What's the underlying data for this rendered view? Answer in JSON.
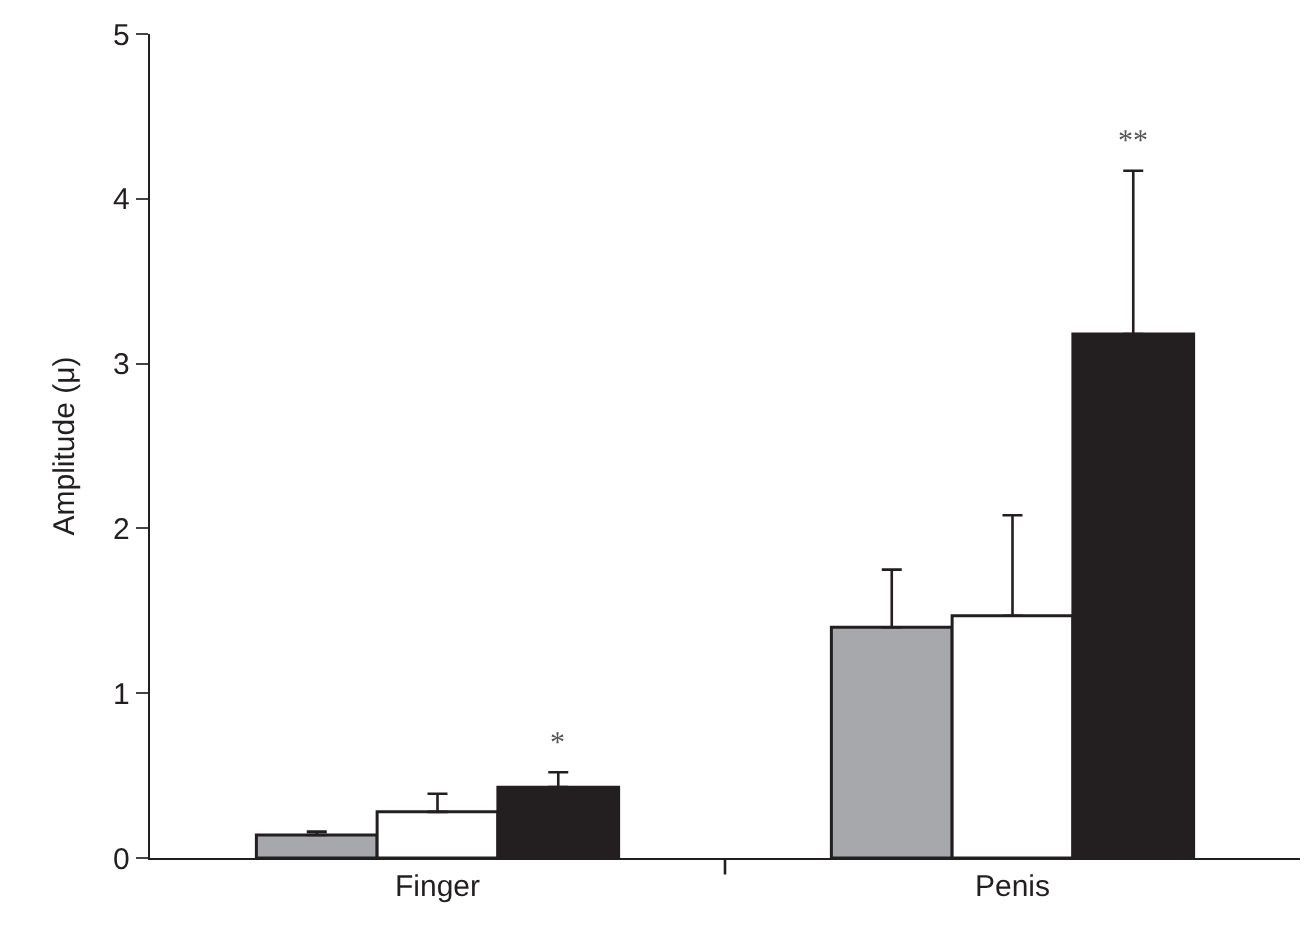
{
  "chart_data": {
    "type": "bar",
    "ylabel": "Amplitude (μ)",
    "categories": [
      "Finger",
      "Penis"
    ],
    "series": [
      {
        "color": "#a7a8ab",
        "values": [
          0.14,
          1.4
        ],
        "errors": [
          [
            0.14,
            0.16
          ],
          [
            1.4,
            1.75
          ]
        ]
      },
      {
        "color": "#ffffff",
        "values": [
          0.28,
          1.47
        ],
        "errors": [
          [
            0.28,
            0.39
          ],
          [
            1.47,
            2.08
          ]
        ]
      },
      {
        "color": "#231f20",
        "values": [
          0.43,
          3.18
        ],
        "errors": [
          [
            0.43,
            0.52
          ],
          [
            3.18,
            4.17
          ]
        ]
      }
    ],
    "annotations": [
      "*",
      "**"
    ],
    "ylim": [
      0,
      5
    ],
    "yticks": [
      0,
      1,
      2,
      3,
      4,
      5
    ]
  }
}
